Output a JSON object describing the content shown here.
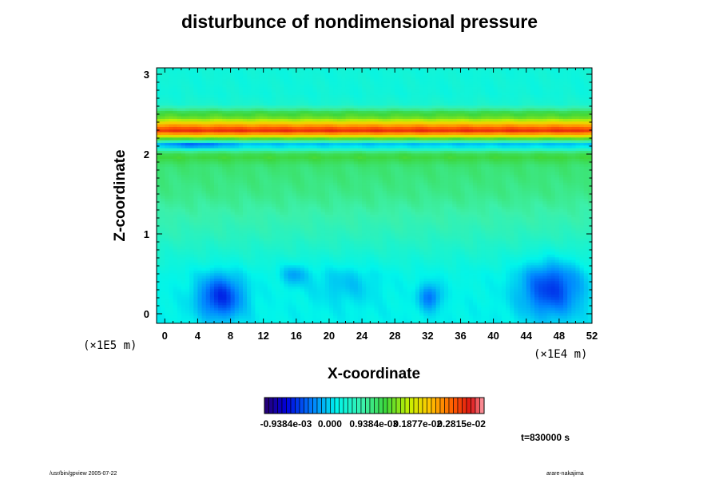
{
  "chart_data": {
    "type": "heatmap",
    "title": "disturbunce of nondimensional pressure",
    "xlabel": "X-coordinate",
    "ylabel": "Z-coordinate",
    "x_scale_label": "(×1E4 m)",
    "y_scale_label": "(×1E5 m)",
    "xlim": [
      -1,
      52
    ],
    "ylim": [
      -0.12,
      3.08
    ],
    "x_ticks": [
      "0",
      "4",
      "8",
      "12",
      "16",
      "20",
      "24",
      "28",
      "32",
      "36",
      "40",
      "44",
      "48",
      "52"
    ],
    "y_ticks": [
      "0",
      "1",
      "2",
      "3"
    ],
    "colorbar_labels": [
      "-0.9384e-03",
      "0.000",
      "0.9384e-03",
      "0.1877e-02",
      "0.2815e-02"
    ],
    "colorbar_range": [
      -0.0014,
      0.0033
    ],
    "z_profile": [
      {
        "z": -0.12,
        "v": 0.00015
      },
      {
        "z": 0.0,
        "v": 0.00015
      },
      {
        "z": 0.5,
        "v": 0.0002
      },
      {
        "z": 1.0,
        "v": 0.00055
      },
      {
        "z": 1.5,
        "v": 0.00085
      },
      {
        "z": 1.85,
        "v": 0.00095
      },
      {
        "z": 1.98,
        "v": 0.0012
      },
      {
        "z": 2.03,
        "v": 0.0009
      },
      {
        "z": 2.09,
        "v": 0.0002
      },
      {
        "z": 2.12,
        "v": -0.0003
      },
      {
        "z": 2.17,
        "v": 0.0008
      },
      {
        "z": 2.23,
        "v": 0.0019
      },
      {
        "z": 2.3,
        "v": 0.0029
      },
      {
        "z": 2.37,
        "v": 0.0023
      },
      {
        "z": 2.45,
        "v": 0.0014
      },
      {
        "z": 2.53,
        "v": 0.0011
      },
      {
        "z": 2.62,
        "v": 0.0004
      },
      {
        "z": 2.75,
        "v": 0.0003
      },
      {
        "z": 3.08,
        "v": 0.0003
      }
    ],
    "anomalies": [
      {
        "x": 6.8,
        "z": 0.22,
        "rx": 2.8,
        "rz": 0.28,
        "dv": -0.0009
      },
      {
        "x": 47.0,
        "z": 0.32,
        "rx": 3.8,
        "rz": 0.35,
        "dv": -0.00085
      },
      {
        "x": 32.3,
        "z": 0.22,
        "rx": 1.4,
        "rz": 0.17,
        "dv": -0.0006
      },
      {
        "x": 15.8,
        "z": 0.5,
        "rx": 1.6,
        "rz": 0.14,
        "dv": -0.0004
      },
      {
        "x": 22.0,
        "z": 0.38,
        "rx": 4.0,
        "rz": 0.25,
        "dv": -0.00025
      },
      {
        "x": 4.0,
        "z": 2.12,
        "rx": 3.5,
        "rz": 0.05,
        "dv": -0.0004
      }
    ],
    "time_label": "t=830000 s"
  },
  "footer": {
    "left": "/usr/bin/gpview 2005-07-22",
    "right": "arare-nakajima"
  }
}
